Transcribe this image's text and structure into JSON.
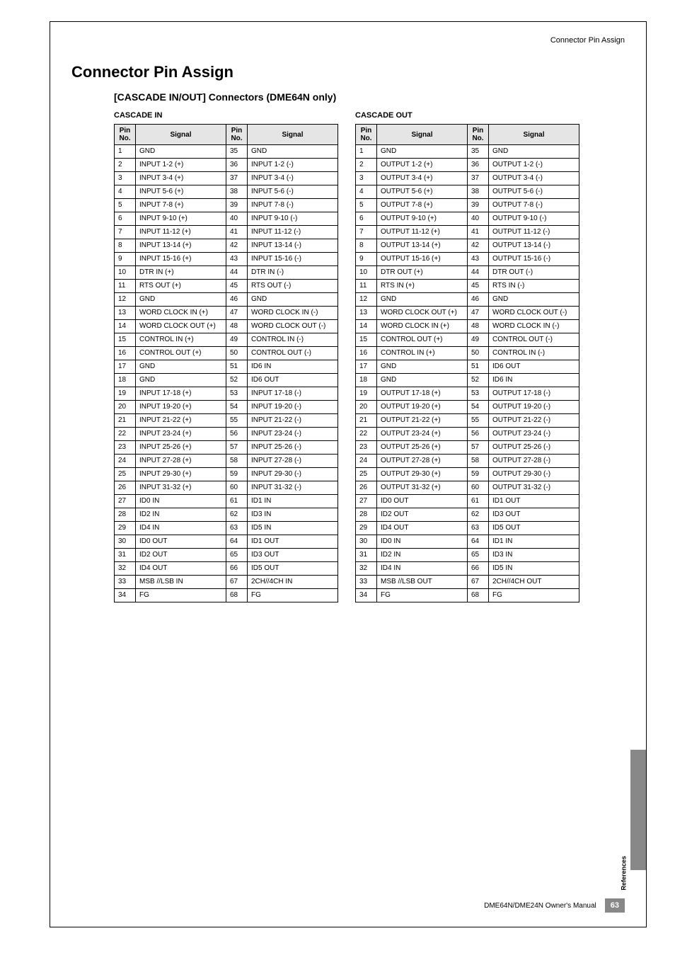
{
  "header_label": "Connector Pin Assign",
  "main_title": "Connector Pin Assign",
  "sub_title": "[CASCADE IN/OUT] Connectors (DME64N only)",
  "table_header": {
    "pin": "Pin\nNo.",
    "signal": "Signal"
  },
  "cascade_in": {
    "caption": "CASCADE IN",
    "rows": [
      {
        "a": "1",
        "b": "GND",
        "c": "35",
        "d": "GND"
      },
      {
        "a": "2",
        "b": "INPUT 1-2 (+)",
        "c": "36",
        "d": "INPUT 1-2 (-)"
      },
      {
        "a": "3",
        "b": "INPUT 3-4 (+)",
        "c": "37",
        "d": "INPUT 3-4 (-)"
      },
      {
        "a": "4",
        "b": "INPUT 5-6 (+)",
        "c": "38",
        "d": "INPUT 5-6 (-)"
      },
      {
        "a": "5",
        "b": "INPUT 7-8 (+)",
        "c": "39",
        "d": "INPUT 7-8 (-)"
      },
      {
        "a": "6",
        "b": "INPUT 9-10 (+)",
        "c": "40",
        "d": "INPUT 9-10 (-)"
      },
      {
        "a": "7",
        "b": "INPUT 11-12 (+)",
        "c": "41",
        "d": "INPUT 11-12 (-)"
      },
      {
        "a": "8",
        "b": "INPUT 13-14 (+)",
        "c": "42",
        "d": "INPUT 13-14 (-)"
      },
      {
        "a": "9",
        "b": "INPUT 15-16 (+)",
        "c": "43",
        "d": "INPUT 15-16 (-)"
      },
      {
        "a": "10",
        "b": "DTR IN (+)",
        "c": "44",
        "d": "DTR IN (-)"
      },
      {
        "a": "11",
        "b": "RTS OUT (+)",
        "c": "45",
        "d": "RTS OUT (-)"
      },
      {
        "a": "12",
        "b": "GND",
        "c": "46",
        "d": "GND"
      },
      {
        "a": "13",
        "b": "WORD CLOCK IN (+)",
        "c": "47",
        "d": "WORD CLOCK IN (-)"
      },
      {
        "a": "14",
        "b": "WORD CLOCK OUT (+)",
        "c": "48",
        "d": "WORD CLOCK OUT (-)"
      },
      {
        "a": "15",
        "b": "CONTROL IN (+)",
        "c": "49",
        "d": "CONTROL IN (-)"
      },
      {
        "a": "16",
        "b": "CONTROL OUT (+)",
        "c": "50",
        "d": "CONTROL OUT (-)"
      },
      {
        "a": "17",
        "b": "GND",
        "c": "51",
        "d": "ID6 IN"
      },
      {
        "a": "18",
        "b": "GND",
        "c": "52",
        "d": "ID6 OUT"
      },
      {
        "a": "19",
        "b": "INPUT 17-18 (+)",
        "c": "53",
        "d": "INPUT 17-18 (-)"
      },
      {
        "a": "20",
        "b": "INPUT 19-20 (+)",
        "c": "54",
        "d": "INPUT 19-20 (-)"
      },
      {
        "a": "21",
        "b": "INPUT 21-22 (+)",
        "c": "55",
        "d": "INPUT 21-22 (-)"
      },
      {
        "a": "22",
        "b": "INPUT 23-24 (+)",
        "c": "56",
        "d": "INPUT 23-24 (-)"
      },
      {
        "a": "23",
        "b": "INPUT 25-26 (+)",
        "c": "57",
        "d": "INPUT 25-26 (-)"
      },
      {
        "a": "24",
        "b": "INPUT 27-28 (+)",
        "c": "58",
        "d": "INPUT 27-28 (-)"
      },
      {
        "a": "25",
        "b": "INPUT 29-30 (+)",
        "c": "59",
        "d": "INPUT 29-30 (-)"
      },
      {
        "a": "26",
        "b": "INPUT 31-32 (+)",
        "c": "60",
        "d": "INPUT 31-32 (-)"
      },
      {
        "a": "27",
        "b": "ID0 IN",
        "c": "61",
        "d": "ID1 IN"
      },
      {
        "a": "28",
        "b": "ID2 IN",
        "c": "62",
        "d": "ID3 IN"
      },
      {
        "a": "29",
        "b": "ID4 IN",
        "c": "63",
        "d": "ID5 IN"
      },
      {
        "a": "30",
        "b": "ID0 OUT",
        "c": "64",
        "d": "ID1 OUT"
      },
      {
        "a": "31",
        "b": "ID2 OUT",
        "c": "65",
        "d": "ID3 OUT"
      },
      {
        "a": "32",
        "b": "ID4 OUT",
        "c": "66",
        "d": "ID5 OUT"
      },
      {
        "a": "33",
        "b": "MSB //LSB IN",
        "c": "67",
        "d": "2CH//4CH IN"
      },
      {
        "a": "34",
        "b": "FG",
        "c": "68",
        "d": "FG"
      }
    ]
  },
  "cascade_out": {
    "caption": "CASCADE OUT",
    "rows": [
      {
        "a": "1",
        "b": "GND",
        "c": "35",
        "d": "GND"
      },
      {
        "a": "2",
        "b": "OUTPUT 1-2 (+)",
        "c": "36",
        "d": "OUTPUT 1-2 (-)"
      },
      {
        "a": "3",
        "b": "OUTPUT 3-4 (+)",
        "c": "37",
        "d": "OUTPUT 3-4 (-)"
      },
      {
        "a": "4",
        "b": "OUTPUT 5-6 (+)",
        "c": "38",
        "d": "OUTPUT 5-6 (-)"
      },
      {
        "a": "5",
        "b": "OUTPUT 7-8 (+)",
        "c": "39",
        "d": "OUTPUT 7-8 (-)"
      },
      {
        "a": "6",
        "b": "OUTPUT 9-10 (+)",
        "c": "40",
        "d": "OUTPUT 9-10 (-)"
      },
      {
        "a": "7",
        "b": "OUTPUT 11-12 (+)",
        "c": "41",
        "d": "OUTPUT 11-12 (-)"
      },
      {
        "a": "8",
        "b": "OUTPUT 13-14 (+)",
        "c": "42",
        "d": "OUTPUT 13-14 (-)"
      },
      {
        "a": "9",
        "b": "OUTPUT 15-16 (+)",
        "c": "43",
        "d": "OUTPUT 15-16 (-)"
      },
      {
        "a": "10",
        "b": "DTR OUT (+)",
        "c": "44",
        "d": "DTR OUT (-)"
      },
      {
        "a": "11",
        "b": "RTS IN (+)",
        "c": "45",
        "d": "RTS IN (-)"
      },
      {
        "a": "12",
        "b": "GND",
        "c": "46",
        "d": "GND"
      },
      {
        "a": "13",
        "b": "WORD CLOCK OUT (+)",
        "c": "47",
        "d": "WORD CLOCK OUT (-)"
      },
      {
        "a": "14",
        "b": "WORD CLOCK IN (+)",
        "c": "48",
        "d": "WORD CLOCK IN (-)"
      },
      {
        "a": "15",
        "b": "CONTROL OUT (+)",
        "c": "49",
        "d": "CONTROL OUT (-)"
      },
      {
        "a": "16",
        "b": "CONTROL IN (+)",
        "c": "50",
        "d": "CONTROL IN (-)"
      },
      {
        "a": "17",
        "b": "GND",
        "c": "51",
        "d": "ID6 OUT"
      },
      {
        "a": "18",
        "b": "GND",
        "c": "52",
        "d": "ID6 IN"
      },
      {
        "a": "19",
        "b": "OUTPUT 17-18 (+)",
        "c": "53",
        "d": "OUTPUT 17-18 (-)"
      },
      {
        "a": "20",
        "b": "OUTPUT 19-20 (+)",
        "c": "54",
        "d": "OUTPUT 19-20 (-)"
      },
      {
        "a": "21",
        "b": "OUTPUT 21-22 (+)",
        "c": "55",
        "d": "OUTPUT 21-22 (-)"
      },
      {
        "a": "22",
        "b": "OUTPUT 23-24 (+)",
        "c": "56",
        "d": "OUTPUT 23-24 (-)"
      },
      {
        "a": "23",
        "b": "OUTPUT 25-26 (+)",
        "c": "57",
        "d": "OUTPUT 25-26 (-)"
      },
      {
        "a": "24",
        "b": "OUTPUT 27-28 (+)",
        "c": "58",
        "d": "OUTPUT 27-28 (-)"
      },
      {
        "a": "25",
        "b": "OUTPUT 29-30 (+)",
        "c": "59",
        "d": "OUTPUT 29-30 (-)"
      },
      {
        "a": "26",
        "b": "OUTPUT 31-32 (+)",
        "c": "60",
        "d": "OUTPUT 31-32 (-)"
      },
      {
        "a": "27",
        "b": "ID0 OUT",
        "c": "61",
        "d": "ID1 OUT"
      },
      {
        "a": "28",
        "b": "ID2 OUT",
        "c": "62",
        "d": "ID3 OUT"
      },
      {
        "a": "29",
        "b": "ID4 OUT",
        "c": "63",
        "d": "ID5 OUT"
      },
      {
        "a": "30",
        "b": "ID0 IN",
        "c": "64",
        "d": "ID1 IN"
      },
      {
        "a": "31",
        "b": "ID2 IN",
        "c": "65",
        "d": "ID3 IN"
      },
      {
        "a": "32",
        "b": "ID4 IN",
        "c": "66",
        "d": "ID5 IN"
      },
      {
        "a": "33",
        "b": "MSB //LSB OUT",
        "c": "67",
        "d": "2CH//4CH OUT"
      },
      {
        "a": "34",
        "b": "FG",
        "c": "68",
        "d": "FG"
      }
    ]
  },
  "side_tab_label": "References",
  "footer_text": "DME64N/DME24N Owner's Manual",
  "page_number": "63"
}
